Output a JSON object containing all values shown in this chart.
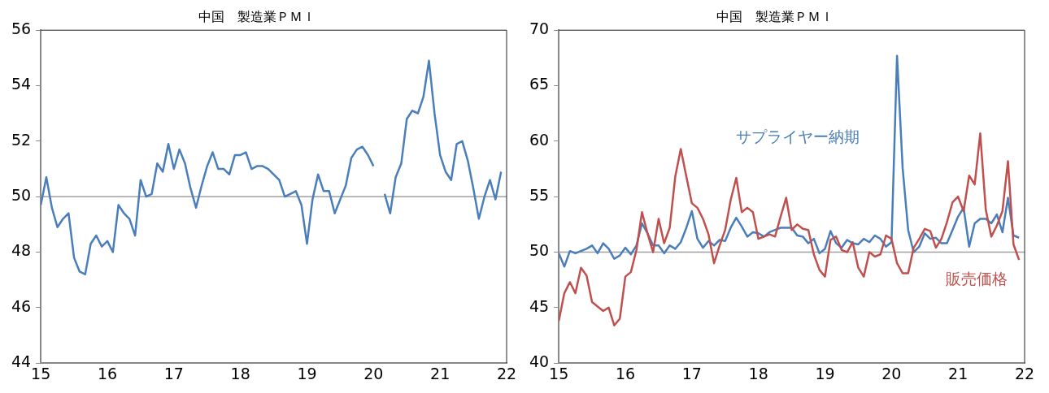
{
  "chart_data": [
    {
      "type": "line",
      "title": "中国　製造業ＰＭＩ",
      "x": [
        15,
        15.083,
        15.167,
        15.25,
        15.333,
        15.417,
        15.5,
        15.583,
        15.667,
        15.75,
        15.833,
        15.917,
        16,
        16.083,
        16.167,
        16.25,
        16.333,
        16.417,
        16.5,
        16.583,
        16.667,
        16.75,
        16.833,
        16.917,
        17,
        17.083,
        17.167,
        17.25,
        17.333,
        17.417,
        17.5,
        17.583,
        17.667,
        17.75,
        17.833,
        17.917,
        18,
        18.083,
        18.167,
        18.25,
        18.333,
        18.417,
        18.5,
        18.583,
        18.667,
        18.75,
        18.833,
        18.917,
        19,
        19.083,
        19.167,
        19.25,
        19.333,
        19.417,
        19.5,
        19.583,
        19.667,
        19.75,
        19.833,
        19.917,
        20,
        20.083,
        20.167,
        20.25,
        20.333,
        20.417,
        20.5,
        20.583,
        20.667,
        20.75,
        20.833,
        20.917,
        21,
        21.083,
        21.167,
        21.25,
        21.333,
        21.417,
        21.5,
        21.583,
        21.667,
        21.75,
        21.833,
        21.917
      ],
      "series": [
        {
          "color": "#4a7ebb",
          "values": [
            49.7,
            50.7,
            49.6,
            48.9,
            49.2,
            49.4,
            47.8,
            47.3,
            47.2,
            48.3,
            48.6,
            48.2,
            48.4,
            48.0,
            49.7,
            49.4,
            49.2,
            48.6,
            50.6,
            50.0,
            50.1,
            51.2,
            50.9,
            51.9,
            51.0,
            51.7,
            51.2,
            50.3,
            49.6,
            50.4,
            51.1,
            51.6,
            51.0,
            51.0,
            50.8,
            51.5,
            51.5,
            51.6,
            51.0,
            51.1,
            51.1,
            51.0,
            50.8,
            50.6,
            50.0,
            50.1,
            50.2,
            49.7,
            48.3,
            49.9,
            50.8,
            50.2,
            50.2,
            49.4,
            49.9,
            50.4,
            51.4,
            51.7,
            51.8,
            51.5,
            51.1,
            null,
            50.1,
            49.4,
            50.7,
            51.2,
            52.8,
            53.1,
            53.0,
            53.6,
            54.9,
            53.0,
            51.5,
            50.9,
            50.6,
            51.9,
            52.0,
            51.3,
            50.3,
            49.2,
            50.0,
            50.6,
            49.9,
            50.9
          ]
        }
      ],
      "xlim": [
        15,
        22
      ],
      "xticks": [
        15,
        16,
        17,
        18,
        19,
        20,
        21,
        22
      ],
      "ylim": [
        44,
        56
      ],
      "yticks": [
        44,
        46,
        48,
        50,
        52,
        54,
        56
      ],
      "ref_lines": [
        {
          "axis": "y",
          "value": 50,
          "color": "#a0a0a0"
        }
      ]
    },
    {
      "type": "line",
      "title": "中国　製造業ＰＭＩ",
      "x": [
        15,
        15.083,
        15.167,
        15.25,
        15.333,
        15.417,
        15.5,
        15.583,
        15.667,
        15.75,
        15.833,
        15.917,
        16,
        16.083,
        16.167,
        16.25,
        16.333,
        16.417,
        16.5,
        16.583,
        16.667,
        16.75,
        16.833,
        16.917,
        17,
        17.083,
        17.167,
        17.25,
        17.333,
        17.417,
        17.5,
        17.583,
        17.667,
        17.75,
        17.833,
        17.917,
        18,
        18.083,
        18.167,
        18.25,
        18.333,
        18.417,
        18.5,
        18.583,
        18.667,
        18.75,
        18.833,
        18.917,
        19,
        19.083,
        19.167,
        19.25,
        19.333,
        19.417,
        19.5,
        19.583,
        19.667,
        19.75,
        19.833,
        19.917,
        20,
        20.083,
        20.167,
        20.25,
        20.333,
        20.417,
        20.5,
        20.583,
        20.667,
        20.75,
        20.833,
        20.917,
        21,
        21.083,
        21.167,
        21.25,
        21.333,
        21.417,
        21.5,
        21.583,
        21.667,
        21.75,
        21.833,
        21.917
      ],
      "series": [
        {
          "name": "販売価格",
          "color": "#c0504d",
          "values": [
            43.8,
            46.3,
            47.3,
            46.3,
            48.6,
            47.9,
            45.5,
            45.1,
            44.7,
            45.0,
            43.4,
            44.0,
            47.8,
            48.2,
            50.2,
            53.6,
            51.7,
            50.0,
            53.0,
            50.8,
            52.2,
            56.8,
            59.3,
            56.8,
            54.4,
            54.0,
            53.0,
            51.6,
            49.0,
            50.6,
            52.0,
            54.7,
            56.7,
            53.6,
            54.0,
            53.6,
            51.2,
            51.4,
            51.6,
            51.4,
            53.2,
            54.9,
            52.0,
            52.5,
            52.1,
            52.0,
            49.8,
            48.4,
            47.8,
            51.1,
            51.4,
            50.2,
            50.0,
            50.9,
            48.6,
            47.8,
            50.0,
            49.6,
            49.8,
            51.5,
            51.2,
            49.0,
            48.1,
            48.1,
            50.4,
            51.2,
            52.1,
            51.9,
            50.4,
            51.2,
            52.7,
            54.5,
            55.0,
            53.7,
            56.9,
            56.1,
            60.7,
            53.8,
            51.4,
            52.4,
            53.7,
            58.2,
            50.7,
            49.3
          ]
        },
        {
          "name": "サプライヤー納期",
          "color": "#4a7ebb",
          "values": [
            49.9,
            48.7,
            50.1,
            49.9,
            50.1,
            50.3,
            50.6,
            49.9,
            50.8,
            50.3,
            49.4,
            49.7,
            50.4,
            49.8,
            50.6,
            52.6,
            51.7,
            50.6,
            50.6,
            49.9,
            50.6,
            50.3,
            50.9,
            52.2,
            53.7,
            51.2,
            50.4,
            51.0,
            50.6,
            51.1,
            51.0,
            52.2,
            53.1,
            52.3,
            51.4,
            51.8,
            51.7,
            51.4,
            51.8,
            52.0,
            52.2,
            52.2,
            52.2,
            51.5,
            51.4,
            50.8,
            51.2,
            49.9,
            50.3,
            51.9,
            50.8,
            50.4,
            51.1,
            50.8,
            50.7,
            51.2,
            50.9,
            51.5,
            51.2,
            50.5,
            50.9,
            67.7,
            57.6,
            52.0,
            50.0,
            50.5,
            51.7,
            51.2,
            51.3,
            50.8,
            50.8,
            52.0,
            53.2,
            54.0,
            50.5,
            52.6,
            53.0,
            53.0,
            52.6,
            53.4,
            51.8,
            54.9,
            51.5,
            51.3
          ]
        }
      ],
      "xlim": [
        15,
        22
      ],
      "xticks": [
        15,
        16,
        17,
        18,
        19,
        20,
        21,
        22
      ],
      "ylim": [
        40,
        70
      ],
      "yticks": [
        40,
        45,
        50,
        55,
        60,
        65,
        70
      ],
      "ref_lines": [
        {
          "axis": "y",
          "value": 50,
          "color": "#a0a0a0"
        }
      ]
    }
  ]
}
